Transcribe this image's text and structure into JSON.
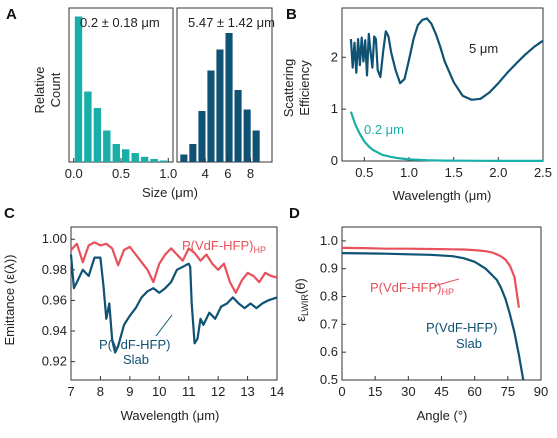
{
  "colors": {
    "teal": "#1aaea9",
    "navy": "#0f5273",
    "red": "#e8505b",
    "axis": "#333333"
  },
  "panels": {
    "A": {
      "letter": "A",
      "ylabel_line1": "Relative",
      "ylabel_line2": "Count",
      "xlabel": "Size (μm)",
      "left_annotation": "0.2 ± 0.18 μm",
      "right_annotation": "5.47 ± 1.42 μm"
    },
    "B": {
      "letter": "B",
      "ylabel_line1": "Scattering",
      "ylabel_line2": "Efficiency",
      "xlabel": "Wavelength (μm)",
      "label_5um": "5 μm",
      "label_02um": "0.2 μm"
    },
    "C": {
      "letter": "C",
      "ylabel": "Emittance (ε(λ))",
      "xlabel": "Wavelength (μm)",
      "label_hp_main": "P(VdF-HFP)",
      "label_hp_sub": "HP",
      "label_slab_line1": "P(VdF-HFP)",
      "label_slab_line2": "Slab"
    },
    "D": {
      "letter": "D",
      "ylabel_main": "ε",
      "ylabel_sub": "LWIR",
      "ylabel_tail": "(θ)",
      "xlabel": "Angle (°)",
      "label_hp_main": "P(VdF-HFP)",
      "label_hp_sub": "HP",
      "label_slab_line1": "P(VdF-HFP)",
      "label_slab_line2": "Slab"
    }
  },
  "chart_data": [
    {
      "panel": "A-left",
      "type": "bar",
      "xlabel": "Size (μm)",
      "ylabel": "Relative Count",
      "xlim": [
        -0.05,
        1.05
      ],
      "ylim": [
        0,
        1
      ],
      "x_ticks": [
        0.0,
        0.5,
        1.0
      ],
      "x_tick_labels": [
        "0.0",
        "0.5",
        "1.0"
      ],
      "bin_width": 0.1,
      "x": [
        0.05,
        0.15,
        0.25,
        0.35,
        0.45,
        0.55,
        0.65,
        0.75,
        0.85,
        0.95
      ],
      "values": [
        0.97,
        0.47,
        0.36,
        0.21,
        0.12,
        0.085,
        0.06,
        0.035,
        0.02,
        0.01
      ]
    },
    {
      "panel": "A-right",
      "type": "bar",
      "xlabel": "Size (μm)",
      "xlim": [
        1.5,
        9.9
      ],
      "ylim": [
        0,
        1
      ],
      "x_ticks": [
        4,
        6,
        8
      ],
      "x_tick_labels": [
        "4",
        "6",
        "8"
      ],
      "bin_width": 0.8,
      "x": [
        2.1,
        2.9,
        3.7,
        4.5,
        5.3,
        6.1,
        6.9,
        7.7,
        8.5
      ],
      "values": [
        0.05,
        0.12,
        0.34,
        0.61,
        0.75,
        0.86,
        0.48,
        0.35,
        0.21
      ]
    },
    {
      "panel": "B",
      "type": "line",
      "xlabel": "Wavelength (μm)",
      "ylabel": "Scattering Efficiency",
      "xlim": [
        0.25,
        2.5
      ],
      "ylim": [
        0,
        2.95
      ],
      "x_ticks": [
        0.5,
        1.0,
        1.5,
        2.0,
        2.5
      ],
      "x_tick_labels": [
        "0.5",
        "1.0",
        "1.5",
        "2.0",
        "2.5"
      ],
      "y_ticks": [
        0,
        1,
        2
      ],
      "y_tick_labels": [
        "0",
        "1",
        "2"
      ],
      "series": [
        {
          "name": "5 μm",
          "color": "navy",
          "x": [
            0.35,
            0.37,
            0.39,
            0.41,
            0.43,
            0.45,
            0.47,
            0.49,
            0.51,
            0.53,
            0.55,
            0.57,
            0.59,
            0.61,
            0.63,
            0.65,
            0.68,
            0.71,
            0.74,
            0.77,
            0.8,
            0.85,
            0.9,
            0.95,
            1.0,
            1.05,
            1.1,
            1.15,
            1.2,
            1.25,
            1.3,
            1.35,
            1.4,
            1.5,
            1.6,
            1.7,
            1.8,
            1.9,
            2.0,
            2.1,
            2.2,
            2.3,
            2.4,
            2.5
          ],
          "y": [
            2.35,
            1.8,
            2.28,
            1.7,
            2.35,
            1.85,
            2.38,
            1.92,
            2.33,
            1.65,
            2.45,
            2.1,
            1.8,
            2.4,
            2.35,
            1.75,
            1.62,
            2.1,
            2.5,
            2.4,
            2.1,
            1.75,
            1.5,
            1.58,
            1.95,
            2.35,
            2.62,
            2.72,
            2.75,
            2.65,
            2.45,
            2.2,
            1.92,
            1.52,
            1.26,
            1.18,
            1.2,
            1.32,
            1.5,
            1.7,
            1.88,
            2.05,
            2.2,
            2.32
          ]
        },
        {
          "name": "0.2 μm",
          "color": "teal",
          "x": [
            0.35,
            0.4,
            0.45,
            0.5,
            0.55,
            0.6,
            0.7,
            0.8,
            0.9,
            1.0,
            1.2,
            1.4,
            1.6,
            1.8,
            2.0,
            2.5
          ],
          "y": [
            0.95,
            0.7,
            0.52,
            0.38,
            0.28,
            0.21,
            0.12,
            0.08,
            0.05,
            0.03,
            0.015,
            0.008,
            0.005,
            0.003,
            0.002,
            0.001
          ]
        }
      ]
    },
    {
      "panel": "C",
      "type": "line",
      "xlabel": "Wavelength (μm)",
      "ylabel": "Emittance (ε(λ))",
      "xlim": [
        7,
        14
      ],
      "ylim": [
        0.908,
        1.008
      ],
      "x_ticks": [
        7,
        8,
        9,
        10,
        11,
        12,
        13,
        14
      ],
      "x_tick_labels": [
        "7",
        "8",
        "9",
        "10",
        "11",
        "12",
        "13",
        "14"
      ],
      "y_ticks": [
        0.92,
        0.94,
        0.96,
        0.98,
        1.0
      ],
      "y_tick_labels": [
        "0.92",
        "0.94",
        "0.96",
        "0.98",
        "1.00"
      ],
      "series": [
        {
          "name": "P(VdF-HFP)HP",
          "color": "red",
          "x": [
            7.0,
            7.2,
            7.4,
            7.6,
            7.8,
            8.0,
            8.2,
            8.4,
            8.6,
            8.8,
            9.0,
            9.2,
            9.4,
            9.6,
            9.8,
            10.0,
            10.2,
            10.4,
            10.6,
            10.8,
            11.0,
            11.2,
            11.4,
            11.6,
            11.8,
            12.0,
            12.2,
            12.4,
            12.6,
            12.8,
            13.0,
            13.2,
            13.4,
            13.6,
            13.8,
            14.0
          ],
          "y": [
            0.993,
            0.997,
            0.985,
            0.996,
            0.998,
            0.996,
            0.997,
            0.994,
            0.983,
            0.993,
            0.995,
            0.99,
            0.985,
            0.98,
            0.972,
            0.984,
            0.99,
            0.994,
            0.99,
            0.986,
            0.994,
            0.991,
            0.986,
            0.99,
            0.984,
            0.98,
            0.984,
            0.972,
            0.965,
            0.973,
            0.978,
            0.976,
            0.972,
            0.978,
            0.976,
            0.975
          ]
        },
        {
          "name": "P(VdF-HFP) Slab",
          "color": "navy",
          "x": [
            7.0,
            7.1,
            7.2,
            7.4,
            7.6,
            7.8,
            8.0,
            8.1,
            8.2,
            8.3,
            8.4,
            8.5,
            8.6,
            8.8,
            9.0,
            9.2,
            9.4,
            9.6,
            9.8,
            10.0,
            10.2,
            10.4,
            10.6,
            10.8,
            11.0,
            11.05,
            11.1,
            11.2,
            11.3,
            11.4,
            11.5,
            11.7,
            11.9,
            12.1,
            12.3,
            12.5,
            12.7,
            12.9,
            13.1,
            13.3,
            13.5,
            13.7,
            14.0
          ],
          "y": [
            0.99,
            0.968,
            0.972,
            0.98,
            0.976,
            0.988,
            0.988,
            0.97,
            0.948,
            0.958,
            0.934,
            0.926,
            0.93,
            0.944,
            0.95,
            0.955,
            0.962,
            0.966,
            0.968,
            0.965,
            0.968,
            0.972,
            0.98,
            0.982,
            0.984,
            0.982,
            0.958,
            0.932,
            0.935,
            0.948,
            0.944,
            0.952,
            0.948,
            0.956,
            0.958,
            0.962,
            0.958,
            0.955,
            0.958,
            0.955,
            0.958,
            0.96,
            0.962
          ]
        }
      ]
    },
    {
      "panel": "D",
      "type": "line",
      "xlabel": "Angle (°)",
      "ylabel": "εLWIR(θ)",
      "xlim": [
        0,
        90
      ],
      "ylim": [
        0.5,
        1.05
      ],
      "x_ticks": [
        0,
        15,
        30,
        45,
        60,
        75,
        90
      ],
      "x_tick_labels": [
        "0",
        "15",
        "30",
        "45",
        "60",
        "75",
        "90"
      ],
      "y_ticks": [
        0.5,
        0.6,
        0.7,
        0.8,
        0.9,
        1.0
      ],
      "y_tick_labels": [
        "0.5",
        "0.6",
        "0.7",
        "0.8",
        "0.9",
        "1.0"
      ],
      "series": [
        {
          "name": "P(VdF-HFP)HP",
          "color": "red",
          "x": [
            0,
            10,
            20,
            30,
            40,
            50,
            55,
            60,
            65,
            68,
            70,
            72,
            74,
            76,
            78,
            80
          ],
          "y": [
            0.975,
            0.974,
            0.972,
            0.972,
            0.971,
            0.97,
            0.969,
            0.967,
            0.963,
            0.958,
            0.952,
            0.944,
            0.932,
            0.91,
            0.87,
            0.76
          ]
        },
        {
          "name": "P(VdF-HFP) Slab",
          "color": "navy",
          "x": [
            0,
            10,
            20,
            30,
            40,
            50,
            55,
            60,
            65,
            70,
            72,
            74,
            76,
            78,
            80,
            82
          ],
          "y": [
            0.956,
            0.955,
            0.954,
            0.952,
            0.95,
            0.945,
            0.938,
            0.925,
            0.9,
            0.86,
            0.83,
            0.79,
            0.735,
            0.67,
            0.59,
            0.5
          ]
        }
      ]
    }
  ]
}
